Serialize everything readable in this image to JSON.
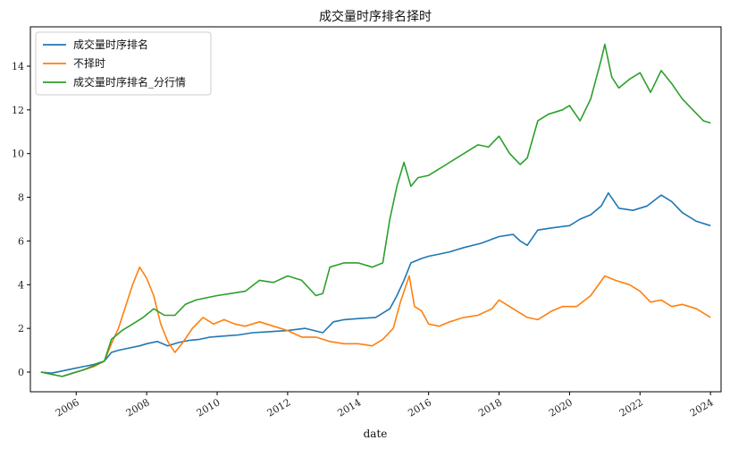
{
  "chart_data": {
    "type": "line",
    "title": "成交量时序排名择时",
    "xlabel": "date",
    "ylabel": "",
    "xlim": [
      2004.7,
      2024.3
    ],
    "ylim": [
      -0.9,
      15.8
    ],
    "grid": false,
    "legend_position": "top-left",
    "xticks": [
      2006,
      2008,
      2010,
      2012,
      2014,
      2016,
      2018,
      2020,
      2022,
      2024
    ],
    "xtick_labels": [
      "2006",
      "2008",
      "2010",
      "2012",
      "2014",
      "2016",
      "2018",
      "2020",
      "2022",
      "2024"
    ],
    "yticks": [
      0,
      2,
      4,
      6,
      8,
      10,
      12,
      14
    ],
    "ytick_labels": [
      "0",
      "2",
      "4",
      "6",
      "8",
      "10",
      "12",
      "14"
    ],
    "series": [
      {
        "name": "成交量时序排名",
        "color": "#1f77b4",
        "x": [
          2005.0,
          2005.3,
          2005.6,
          2005.9,
          2006.2,
          2006.5,
          2006.8,
          2007.0,
          2007.2,
          2007.5,
          2007.8,
          2008.0,
          2008.3,
          2008.6,
          2008.9,
          2009.2,
          2009.5,
          2009.8,
          2010.2,
          2010.6,
          2011.0,
          2011.5,
          2012.0,
          2012.5,
          2013.0,
          2013.3,
          2013.6,
          2014.0,
          2014.5,
          2014.9,
          2015.1,
          2015.3,
          2015.5,
          2015.8,
          2016.0,
          2016.3,
          2016.6,
          2017.0,
          2017.5,
          2018.0,
          2018.4,
          2018.6,
          2018.8,
          2019.1,
          2019.5,
          2020.0,
          2020.3,
          2020.6,
          2020.9,
          2021.1,
          2021.4,
          2021.8,
          2022.2,
          2022.6,
          2022.9,
          2023.2,
          2023.6,
          2024.0
        ],
        "y": [
          0.0,
          -0.05,
          0.05,
          0.15,
          0.25,
          0.35,
          0.5,
          0.9,
          1.0,
          1.1,
          1.2,
          1.3,
          1.4,
          1.2,
          1.35,
          1.45,
          1.5,
          1.6,
          1.65,
          1.7,
          1.8,
          1.85,
          1.9,
          2.0,
          1.8,
          2.3,
          2.4,
          2.45,
          2.5,
          2.9,
          3.5,
          4.2,
          5.0,
          5.2,
          5.3,
          5.4,
          5.5,
          5.7,
          5.9,
          6.2,
          6.3,
          6.0,
          5.8,
          6.5,
          6.6,
          6.7,
          7.0,
          7.2,
          7.6,
          8.2,
          7.5,
          7.4,
          7.6,
          8.1,
          7.8,
          7.3,
          6.9,
          6.7
        ]
      },
      {
        "name": "不择时",
        "color": "#ff7f0e",
        "x": [
          2005.0,
          2005.3,
          2005.6,
          2005.9,
          2006.2,
          2006.5,
          2006.8,
          2007.0,
          2007.2,
          2007.4,
          2007.6,
          2007.8,
          2008.0,
          2008.2,
          2008.4,
          2008.6,
          2008.8,
          2009.0,
          2009.3,
          2009.6,
          2009.9,
          2010.2,
          2010.5,
          2010.8,
          2011.2,
          2011.6,
          2012.0,
          2012.4,
          2012.8,
          2013.2,
          2013.6,
          2014.0,
          2014.4,
          2014.7,
          2015.0,
          2015.2,
          2015.45,
          2015.6,
          2015.8,
          2016.0,
          2016.3,
          2016.6,
          2017.0,
          2017.4,
          2017.8,
          2018.0,
          2018.4,
          2018.8,
          2019.1,
          2019.5,
          2019.8,
          2020.2,
          2020.6,
          2021.0,
          2021.3,
          2021.7,
          2022.0,
          2022.3,
          2022.6,
          2022.9,
          2023.2,
          2023.6,
          2024.0
        ],
        "y": [
          0.0,
          -0.1,
          -0.2,
          -0.05,
          0.1,
          0.25,
          0.5,
          1.3,
          2.0,
          3.0,
          4.0,
          4.8,
          4.3,
          3.5,
          2.2,
          1.4,
          0.9,
          1.3,
          2.0,
          2.5,
          2.2,
          2.4,
          2.2,
          2.1,
          2.3,
          2.1,
          1.9,
          1.6,
          1.6,
          1.4,
          1.3,
          1.3,
          1.2,
          1.5,
          2.0,
          3.2,
          4.4,
          3.0,
          2.8,
          2.2,
          2.1,
          2.3,
          2.5,
          2.6,
          2.9,
          3.3,
          2.9,
          2.5,
          2.4,
          2.8,
          3.0,
          3.0,
          3.5,
          4.4,
          4.2,
          4.0,
          3.7,
          3.2,
          3.3,
          3.0,
          3.1,
          2.9,
          2.5
        ]
      },
      {
        "name": "成交量时序排名_分行情",
        "color": "#2ca02c",
        "x": [
          2005.0,
          2005.3,
          2005.6,
          2005.9,
          2006.2,
          2006.5,
          2006.8,
          2007.0,
          2007.3,
          2007.6,
          2007.9,
          2008.2,
          2008.5,
          2008.8,
          2009.1,
          2009.4,
          2009.7,
          2010.0,
          2010.4,
          2010.8,
          2011.2,
          2011.6,
          2012.0,
          2012.4,
          2012.8,
          2013.0,
          2013.2,
          2013.6,
          2014.0,
          2014.4,
          2014.7,
          2014.9,
          2015.1,
          2015.3,
          2015.5,
          2015.7,
          2016.0,
          2016.3,
          2016.6,
          2017.0,
          2017.4,
          2017.7,
          2018.0,
          2018.3,
          2018.6,
          2018.8,
          2019.1,
          2019.4,
          2019.8,
          2020.0,
          2020.3,
          2020.6,
          2020.9,
          2021.0,
          2021.2,
          2021.4,
          2021.7,
          2022.0,
          2022.3,
          2022.6,
          2022.9,
          2023.2,
          2023.5,
          2023.8,
          2024.0
        ],
        "y": [
          0.0,
          -0.1,
          -0.2,
          -0.05,
          0.1,
          0.3,
          0.5,
          1.5,
          1.9,
          2.2,
          2.5,
          2.9,
          2.6,
          2.6,
          3.1,
          3.3,
          3.4,
          3.5,
          3.6,
          3.7,
          4.2,
          4.1,
          4.4,
          4.2,
          3.5,
          3.6,
          4.8,
          5.0,
          5.0,
          4.8,
          5.0,
          7.0,
          8.5,
          9.6,
          8.5,
          8.9,
          9.0,
          9.3,
          9.6,
          10.0,
          10.4,
          10.3,
          10.8,
          10.0,
          9.5,
          9.8,
          11.5,
          11.8,
          12.0,
          12.2,
          11.5,
          12.5,
          14.3,
          15.0,
          13.5,
          13.0,
          13.4,
          13.7,
          12.8,
          13.8,
          13.2,
          12.5,
          12.0,
          11.5,
          11.4
        ]
      }
    ]
  }
}
